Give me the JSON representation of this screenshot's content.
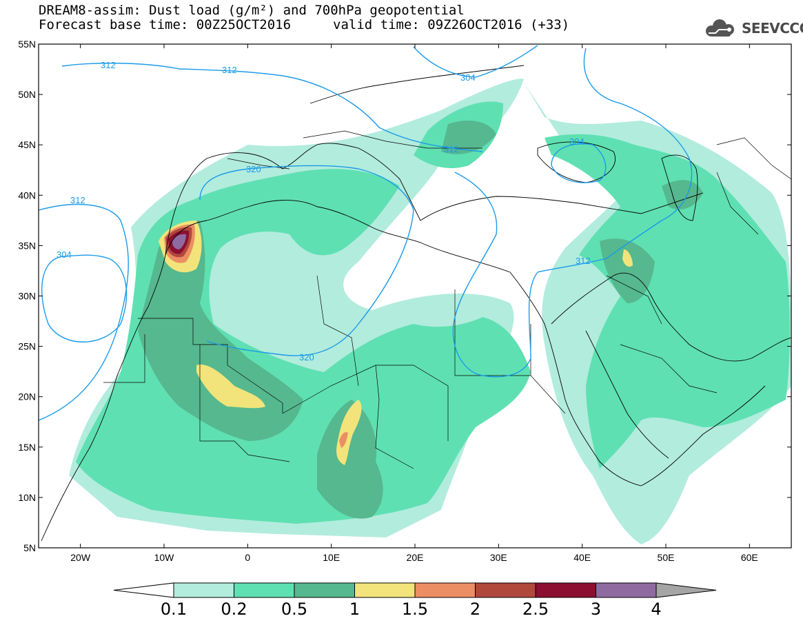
{
  "title": {
    "line1": "DREAM8-assim: Dust load (g/m²) and 700hPa geopotential",
    "base_time": "Forecast base time: 00Z25OCT2016",
    "valid_time": "valid time: 09Z26OCT2016 (+33)"
  },
  "logo": {
    "text": "SEEVCCC",
    "icon": "cloud-icon"
  },
  "map": {
    "lon_range": [
      -25,
      65
    ],
    "lat_range": [
      5,
      55
    ],
    "lat_ticks": [
      "5N",
      "10N",
      "15N",
      "20N",
      "25N",
      "30N",
      "35N",
      "40N",
      "45N",
      "50N",
      "55N"
    ],
    "lon_ticks": [
      "20W",
      "10W",
      "0",
      "10E",
      "20E",
      "30E",
      "40E",
      "50E",
      "60E"
    ],
    "contour_color": "#1a9ae8",
    "contour_labels": [
      "312",
      "312",
      "304",
      "320",
      "312",
      "312",
      "304",
      "320",
      "304",
      "312"
    ]
  },
  "legend": {
    "levels": [
      "0.1",
      "0.2",
      "0.5",
      "1",
      "1.5",
      "2",
      "2.5",
      "3",
      "4"
    ],
    "colors": [
      "#b2ecdd",
      "#5fe0b2",
      "#56b88e",
      "#f2e47a",
      "#ec8e63",
      "#b0483c",
      "#8b0f30",
      "#8f6aa0"
    ],
    "under_color": "#ffffff",
    "over_color": "#a5a5a5"
  }
}
